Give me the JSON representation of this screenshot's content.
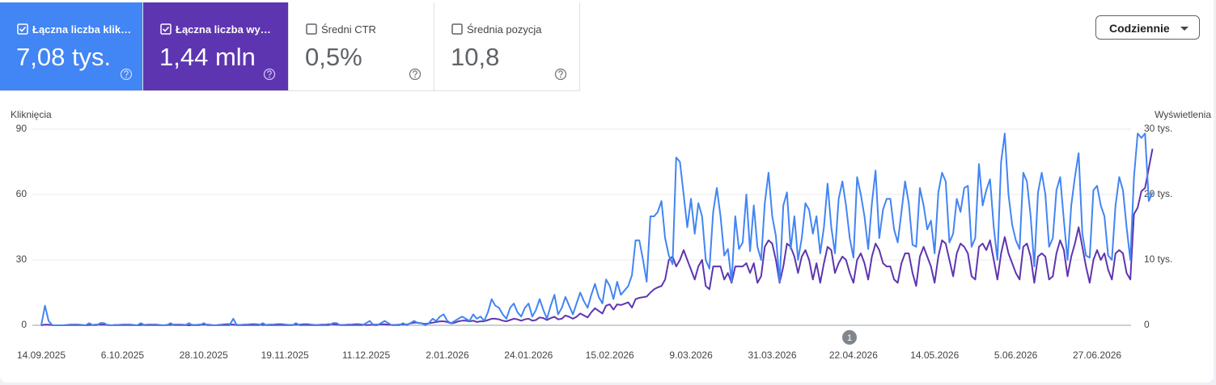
{
  "cards": [
    {
      "label": "Łączna liczba klik…",
      "value": "7,08 tys.",
      "checked": true,
      "color": "#4285f4"
    },
    {
      "label": "Łączna liczba wy…",
      "value": "1,44 mln",
      "checked": true,
      "color": "#5e35b1"
    },
    {
      "label": "Średni CTR",
      "value": "0,5%",
      "checked": false
    },
    {
      "label": "Średnia pozycja",
      "value": "10,8",
      "checked": false
    }
  ],
  "dropdown": "Codziennie",
  "chart_data": {
    "type": "line",
    "y_label": "Kliknięcia",
    "y2_label": "Wyświetlenia",
    "annotations": [
      {
        "text": "1"
      }
    ],
    "ylim": [
      0,
      90
    ],
    "yticks": [
      0,
      30,
      60,
      90
    ],
    "y2lim": [
      0,
      30000
    ],
    "y2ticks": [
      0,
      {
        "value": 10000,
        "label": "10 tys."
      },
      {
        "value": 20000,
        "label": "20 tys."
      },
      {
        "value": 30000,
        "label": "30 tys."
      }
    ],
    "grid": true,
    "categories": [
      "14.09.2025",
      null,
      null,
      null,
      null,
      null,
      null,
      null,
      null,
      null,
      null,
      null,
      null,
      null,
      null,
      null,
      null,
      null,
      null,
      null,
      null,
      null,
      "6.10.2025",
      null,
      null,
      null,
      null,
      null,
      null,
      null,
      null,
      null,
      null,
      null,
      null,
      null,
      null,
      null,
      null,
      null,
      null,
      null,
      null,
      null,
      "28.10.2025",
      null,
      null,
      null,
      null,
      null,
      null,
      null,
      null,
      null,
      null,
      null,
      null,
      null,
      null,
      null,
      null,
      null,
      null,
      null,
      null,
      null,
      "19.11.2025",
      null,
      null,
      null,
      null,
      null,
      null,
      null,
      null,
      null,
      null,
      null,
      null,
      null,
      null,
      null,
      null,
      null,
      null,
      null,
      null,
      null,
      "11.12.2025",
      null,
      null,
      null,
      null,
      null,
      null,
      null,
      null,
      null,
      null,
      null,
      null,
      null,
      null,
      null,
      null,
      null,
      null,
      null,
      null,
      null,
      "2.01.2026",
      null,
      null,
      null,
      null,
      null,
      null,
      null,
      null,
      null,
      null,
      null,
      null,
      null,
      null,
      null,
      null,
      null,
      null,
      null,
      null,
      null,
      "24.01.2026",
      null,
      null,
      null,
      null,
      null,
      null,
      null,
      null,
      null,
      null,
      null,
      null,
      null,
      null,
      null,
      null,
      null,
      null,
      null,
      null,
      null,
      "15.02.2026",
      null,
      null,
      null,
      null,
      null,
      null,
      null,
      null,
      null,
      null,
      null,
      null,
      null,
      null,
      null,
      null,
      null,
      null,
      null,
      null,
      null,
      "9.03.2026",
      null,
      null,
      null,
      null,
      null,
      null,
      null,
      null,
      null,
      null,
      null,
      null,
      null,
      null,
      null,
      null,
      null,
      null,
      null,
      null,
      null,
      "31.03.2026",
      null,
      null,
      null,
      null,
      null,
      null,
      null,
      null,
      null,
      null,
      null,
      null,
      null,
      null,
      null,
      null,
      null,
      null,
      null,
      null,
      null,
      "22.04.2026",
      null,
      null,
      null,
      null,
      null,
      null,
      null,
      null,
      null,
      null,
      null,
      null,
      null,
      null,
      null,
      null,
      null,
      null,
      null,
      null,
      null,
      "14.05.2026",
      null,
      null,
      null,
      null,
      null,
      null,
      null,
      null,
      null,
      null,
      null,
      null,
      null,
      null,
      null,
      null,
      null,
      null,
      null,
      null,
      null,
      "5.06.2026",
      null,
      null,
      null,
      null,
      null,
      null,
      null,
      null,
      null,
      null,
      null,
      null,
      null,
      null,
      null,
      null,
      null,
      null,
      null,
      null,
      null,
      "27.06.2026",
      null,
      null,
      null,
      null,
      null,
      null,
      null,
      null,
      null,
      null,
      null,
      null,
      null,
      null,
      null
    ],
    "series": [
      {
        "name": "Łączna liczba kliknięć",
        "color": "#4285f4",
        "values": [
          0,
          9,
          2,
          0,
          0,
          0,
          0,
          0,
          0,
          0,
          0,
          0,
          0,
          1,
          0,
          0,
          1,
          1,
          0,
          0,
          0,
          0,
          0,
          0,
          0,
          0,
          0,
          1,
          0,
          0,
          0,
          0,
          0,
          0,
          0,
          1,
          0,
          0,
          0,
          0,
          1,
          0,
          0,
          0,
          1,
          0,
          0,
          0,
          0,
          0,
          0,
          0,
          3,
          0,
          0,
          0,
          0,
          0,
          0,
          0,
          1,
          0,
          0,
          0,
          0,
          0,
          0,
          0,
          0,
          1,
          0,
          0,
          0,
          0,
          0,
          0,
          0,
          0,
          0,
          1,
          1,
          0,
          0,
          0,
          0,
          0,
          0,
          0,
          1,
          2,
          0,
          0,
          1,
          2,
          1,
          0,
          0,
          0,
          1,
          0,
          1,
          2,
          1,
          1,
          0,
          1,
          3,
          2,
          4,
          5,
          2,
          1,
          2,
          3,
          4,
          3,
          2,
          5,
          3,
          4,
          2,
          6,
          12,
          9,
          8,
          5,
          3,
          8,
          10,
          6,
          4,
          8,
          10,
          4,
          7,
          12,
          7,
          3,
          9,
          14,
          5,
          8,
          13,
          9,
          5,
          10,
          15,
          11,
          8,
          14,
          19,
          13,
          10,
          21,
          18,
          12,
          20,
          14,
          16,
          18,
          23,
          39,
          39,
          30,
          20,
          50,
          50,
          52,
          57,
          40,
          32,
          28,
          77,
          75,
          60,
          45,
          58,
          42,
          56,
          50,
          30,
          26,
          52,
          63,
          50,
          32,
          35,
          20,
          50,
          35,
          38,
          60,
          34,
          55,
          36,
          30,
          56,
          70,
          50,
          41,
          20,
          55,
          61,
          35,
          50,
          30,
          40,
          56,
          53,
          42,
          50,
          33,
          45,
          65,
          45,
          33,
          58,
          66,
          55,
          40,
          31,
          68,
          60,
          50,
          35,
          56,
          71,
          40,
          53,
          58,
          58,
          44,
          38,
          52,
          66,
          56,
          37,
          36,
          63,
          55,
          44,
          48,
          33,
          61,
          70,
          66,
          38,
          42,
          58,
          52,
          63,
          64,
          36,
          40,
          74,
          55,
          62,
          67,
          45,
          30,
          75,
          88,
          60,
          46,
          39,
          35,
          70,
          66,
          50,
          27,
          61,
          70,
          60,
          36,
          40,
          62,
          68,
          48,
          30,
          55,
          68,
          79,
          42,
          32,
          31,
          62,
          64,
          55,
          50,
          32,
          30,
          55,
          68,
          62,
          45,
          30,
          68,
          88,
          86,
          88,
          57,
          61
        ]
      },
      {
        "name": "Łączna liczba wyświetleń",
        "color": "#5e35b1",
        "axis": "y2",
        "values": [
          0,
          100,
          100,
          0,
          0,
          0,
          0,
          50,
          100,
          100,
          100,
          50,
          0,
          50,
          50,
          100,
          100,
          100,
          50,
          0,
          50,
          50,
          100,
          100,
          100,
          50,
          0,
          50,
          50,
          100,
          100,
          100,
          50,
          0,
          50,
          50,
          100,
          100,
          100,
          50,
          0,
          50,
          50,
          100,
          100,
          100,
          50,
          0,
          50,
          100,
          150,
          150,
          100,
          50,
          50,
          100,
          100,
          150,
          150,
          100,
          50,
          50,
          100,
          100,
          150,
          150,
          100,
          50,
          50,
          100,
          100,
          150,
          150,
          100,
          50,
          50,
          100,
          100,
          150,
          150,
          100,
          50,
          50,
          100,
          100,
          150,
          150,
          100,
          50,
          50,
          100,
          100,
          150,
          150,
          100,
          50,
          50,
          100,
          150,
          100,
          300,
          400,
          400,
          300,
          200,
          300,
          400,
          500,
          600,
          600,
          500,
          300,
          400,
          600,
          700,
          700,
          600,
          700,
          500,
          600,
          600,
          800,
          1000,
          1000,
          900,
          700,
          600,
          800,
          1000,
          900,
          700,
          900,
          1000,
          700,
          800,
          1200,
          1100,
          800,
          1100,
          1300,
          900,
          1000,
          1500,
          1300,
          1000,
          1300,
          1800,
          1500,
          1200,
          2000,
          2600,
          2200,
          1800,
          3000,
          3200,
          2400,
          3200,
          3100,
          3300,
          3500,
          2700,
          4000,
          4200,
          4300,
          4400,
          5000,
          5500,
          5800,
          6000,
          7000,
          10000,
          10500,
          9000,
          10000,
          11500,
          10000,
          8500,
          7000,
          9000,
          10000,
          6000,
          5500,
          9000,
          9000,
          9000,
          7000,
          8000,
          6500,
          9000,
          9000,
          9000,
          9500,
          8000,
          9500,
          6500,
          7500,
          12000,
          13000,
          12500,
          10000,
          6500,
          9000,
          12500,
          12000,
          10500,
          8000,
          10500,
          11500,
          10000,
          7000,
          9500,
          6500,
          9500,
          12000,
          11500,
          8000,
          9500,
          10500,
          10000,
          8000,
          6500,
          10000,
          11000,
          9500,
          7000,
          10500,
          12500,
          11500,
          9500,
          9000,
          9000,
          7000,
          6500,
          9500,
          11000,
          11000,
          8000,
          6000,
          10500,
          12000,
          10500,
          9000,
          6500,
          10500,
          13000,
          12500,
          10000,
          7500,
          11000,
          12500,
          12000,
          11000,
          7500,
          7000,
          12000,
          12500,
          11500,
          13000,
          10000,
          7000,
          11000,
          13500,
          11000,
          9500,
          8000,
          7000,
          12000,
          12500,
          10500,
          6500,
          10500,
          11000,
          10500,
          7000,
          7500,
          11000,
          13000,
          11500,
          7500,
          10500,
          12500,
          15000,
          12000,
          9000,
          6500,
          10000,
          11500,
          10000,
          11000,
          8500,
          7000,
          11000,
          11500,
          11000,
          8000,
          7000,
          17000,
          18000,
          20500,
          21000,
          24000,
          27000
        ]
      }
    ]
  }
}
